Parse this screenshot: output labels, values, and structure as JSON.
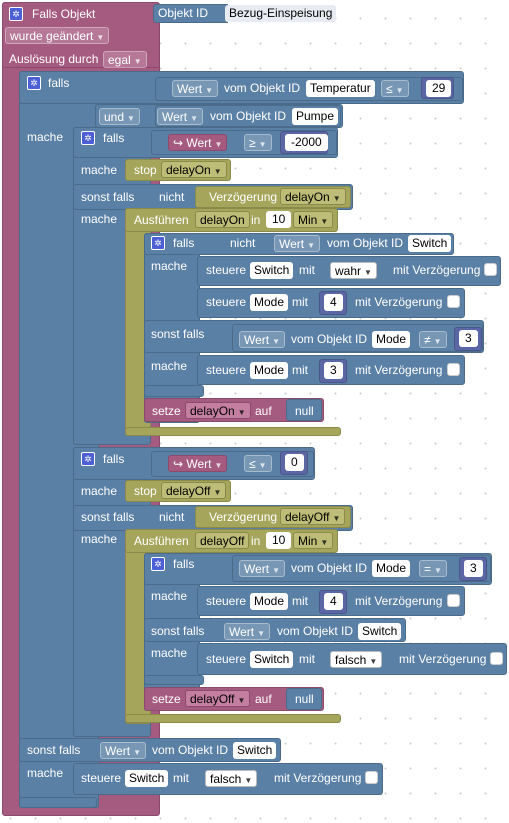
{
  "colors": {
    "event": "#a55b80",
    "logic": "#5b80a5",
    "timer": "#a5a55b",
    "variable": "#a55b80"
  },
  "header": {
    "title": "Falls Objekt",
    "object_id_label": "Objekt ID",
    "object_id_value": "Bezug-Einspeisung",
    "trigger": "wurde geändert",
    "trigger_by_label": "Auslösung durch",
    "trigger_by_value": "egal"
  },
  "outer": {
    "falls": "falls",
    "und": "und",
    "mache": "mache",
    "sonst_falls": "sonst falls",
    "cond1": {
      "prop": "Wert",
      "text": "vom Objekt ID",
      "obj": "Temperatur",
      "op": "≤",
      "num": "29"
    },
    "cond2": {
      "prop": "Wert",
      "text": "vom Objekt ID",
      "obj": "Pumpe"
    },
    "else_cond": {
      "prop": "Wert",
      "text": "vom Objekt ID",
      "obj": "Switch"
    },
    "else_action": {
      "steuere": "steuere",
      "obj": "Switch",
      "mit": "mit",
      "value": "falsch",
      "delay": "mit Verzögerung"
    }
  },
  "block1": {
    "falls": "falls",
    "var": "Wert",
    "op": "≥",
    "num": "-2000",
    "mache": "mache",
    "stop": "stop",
    "timer": "delayOn",
    "sonst_falls": "sonst falls",
    "nicht": "nicht",
    "verz": "Verzögerung",
    "verz_timer": "delayOn",
    "mache2": "mache",
    "ausfuehren": "Ausführen",
    "ausf_timer": "delayOn",
    "in": "in",
    "interval": "10",
    "unit": "Min",
    "inner": {
      "falls": "falls",
      "nicht": "nicht",
      "prop": "Wert",
      "text": "vom Objekt ID",
      "obj": "Switch",
      "mache": "mache",
      "a1": {
        "steuere": "steuere",
        "obj": "Switch",
        "mit": "mit",
        "value": "wahr",
        "delay": "mit Verzögerung"
      },
      "a2": {
        "steuere": "steuere",
        "obj": "Mode",
        "mit": "mit",
        "value": "4",
        "delay": "mit Verzögerung"
      },
      "sonst_falls": "sonst falls",
      "cond": {
        "prop": "Wert",
        "text": "vom Objekt ID",
        "obj": "Mode",
        "op": "≠",
        "num": "3"
      },
      "mache2": "mache",
      "a3": {
        "steuere": "steuere",
        "obj": "Mode",
        "mit": "mit",
        "value": "3",
        "delay": "mit Verzögerung"
      }
    },
    "setze": "setze",
    "setze_var": "delayOn",
    "auf": "auf",
    "null": "null"
  },
  "block2": {
    "falls": "falls",
    "var": "Wert",
    "op": "≤",
    "num": "0",
    "mache": "mache",
    "stop": "stop",
    "timer": "delayOff",
    "sonst_falls": "sonst falls",
    "nicht": "nicht",
    "verz": "Verzögerung",
    "verz_timer": "delayOff",
    "mache2": "mache",
    "ausfuehren": "Ausführen",
    "ausf_timer": "delayOff",
    "in": "in",
    "interval": "10",
    "unit": "Min",
    "inner": {
      "falls": "falls",
      "cond": {
        "prop": "Wert",
        "text": "vom Objekt ID",
        "obj": "Mode",
        "op": "=",
        "num": "3"
      },
      "mache": "mache",
      "a1": {
        "steuere": "steuere",
        "obj": "Mode",
        "mit": "mit",
        "value": "4",
        "delay": "mit Verzögerung"
      },
      "sonst_falls": "sonst falls",
      "cond2": {
        "prop": "Wert",
        "text": "vom Objekt ID",
        "obj": "Switch"
      },
      "mache2": "mache",
      "a2": {
        "steuere": "steuere",
        "obj": "Switch",
        "mit": "mit",
        "value": "falsch",
        "delay": "mit Verzögerung"
      }
    },
    "setze": "setze",
    "setze_var": "delayOff",
    "auf": "auf",
    "null": "null"
  },
  "icons": {
    "gear": "gear-icon",
    "dropdown": "chevron-down-icon",
    "var": "variable-arrow-icon"
  }
}
